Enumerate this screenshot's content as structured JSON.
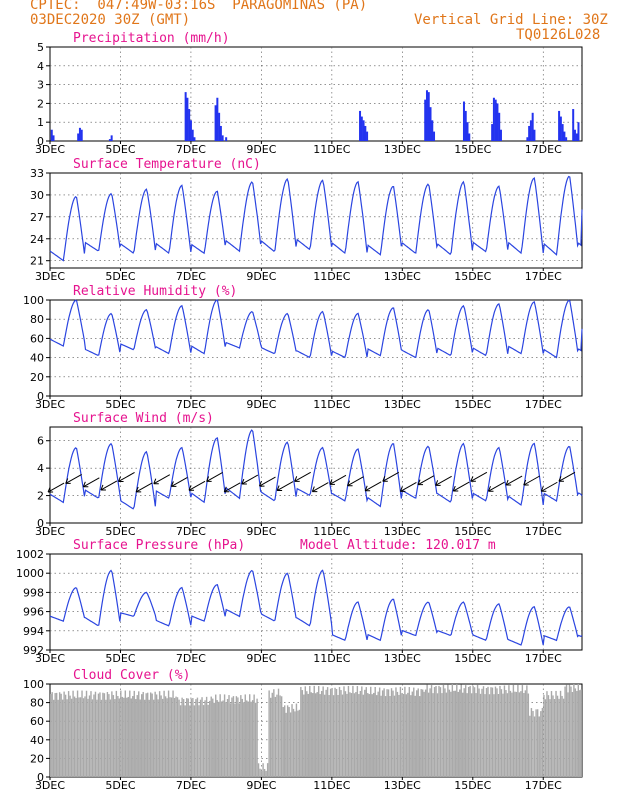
{
  "header": {
    "line1": "CPTEC:  047:49W-03:16S  PARAGOMINAS (PA)",
    "line2": "03DEC2020 30Z (GMT)",
    "right1": "Vertical Grid Line: 30Z",
    "right2": "TQ0126L028"
  },
  "colors": {
    "header": "#e0761a",
    "title": "#e6138f",
    "series": "#2b45e0",
    "precip": "#2333ef",
    "cloud": "#a9a9a9"
  },
  "x_tick_labels": [
    "3DEC",
    "5DEC",
    "7DEC",
    "9DEC",
    "11DEC",
    "13DEC",
    "15DEC",
    "17DEC"
  ],
  "x_range_days": [
    3,
    18.1
  ],
  "chart_data": [
    {
      "type": "bar",
      "title": "Precipitation (mm/h)",
      "ylim": [
        0,
        5
      ],
      "yticks": [
        0,
        1,
        2,
        3,
        4,
        5
      ],
      "x": [
        3.05,
        3.1,
        3.8,
        3.85,
        3.9,
        4.7,
        4.75,
        6.85,
        6.9,
        6.95,
        7.0,
        7.05,
        7.1,
        7.7,
        7.75,
        7.8,
        7.85,
        7.9,
        8.0,
        11.8,
        11.85,
        11.9,
        11.95,
        12.0,
        13.65,
        13.7,
        13.75,
        13.8,
        13.85,
        13.9,
        14.75,
        14.8,
        14.85,
        14.9,
        15.55,
        15.6,
        15.65,
        15.7,
        15.75,
        15.8,
        16.55,
        16.6,
        16.65,
        16.7,
        16.75,
        17.45,
        17.5,
        17.55,
        17.6,
        17.65,
        17.85,
        17.9,
        17.95,
        18.0
      ],
      "values": [
        0.6,
        0.3,
        0.4,
        0.7,
        0.6,
        0.1,
        0.3,
        2.6,
        2.3,
        1.7,
        1.1,
        0.6,
        0.2,
        1.9,
        2.3,
        1.5,
        0.8,
        0.3,
        0.2,
        1.6,
        1.3,
        1.1,
        0.8,
        0.5,
        2.2,
        2.7,
        2.6,
        1.8,
        1.1,
        0.5,
        2.1,
        1.6,
        1.0,
        0.4,
        0.9,
        2.3,
        2.2,
        2.0,
        1.5,
        0.6,
        0.2,
        0.8,
        1.1,
        1.5,
        0.6,
        1.6,
        1.3,
        0.9,
        0.5,
        0.2,
        1.7,
        0.6,
        0.4,
        1.0
      ]
    },
    {
      "type": "line",
      "title": "Surface Temperature (nC)",
      "ylim": [
        20,
        33
      ],
      "yticks": [
        21,
        24,
        27,
        30,
        33
      ],
      "min_values": [
        21.0,
        22.3,
        22.0,
        22.0,
        22.0,
        22.3,
        22.2,
        22.5,
        22.0,
        21.8,
        22.0,
        21.8,
        22.2,
        22.0,
        21.8
      ],
      "max_values": [
        29.8,
        30.2,
        30.8,
        31.3,
        30.5,
        31.8,
        32.2,
        32.0,
        31.8,
        31.2,
        31.5,
        31.8,
        31.2,
        32.3,
        32.6
      ],
      "end_value": 28.0
    },
    {
      "type": "line",
      "title": "Relative Humidity (%)",
      "ylim": [
        0,
        100
      ],
      "yticks": [
        0,
        20,
        40,
        60,
        80,
        100
      ],
      "min_values": [
        52,
        42,
        48,
        44,
        44,
        50,
        44,
        40,
        40,
        42,
        40,
        42,
        42,
        44,
        40
      ],
      "max_values": [
        100,
        86,
        90,
        94,
        100,
        88,
        86,
        88,
        86,
        92,
        90,
        94,
        96,
        98,
        100
      ],
      "end_value": 70
    },
    {
      "type": "line",
      "title": "Surface Wind (m/s)",
      "ylim": [
        0,
        7
      ],
      "yticks": [
        0,
        2,
        4,
        6
      ],
      "min_values": [
        1.5,
        1.8,
        1.0,
        1.8,
        1.5,
        1.8,
        1.6,
        2.0,
        1.6,
        1.2,
        1.8,
        1.5,
        1.6,
        1.3,
        1.6
      ],
      "max_values": [
        5.5,
        5.8,
        5.2,
        5.5,
        6.2,
        6.8,
        5.9,
        5.5,
        5.4,
        5.8,
        5.6,
        5.8,
        5.5,
        5.8,
        5.6
      ],
      "end_value": 2.0
    },
    {
      "type": "line",
      "title": "Surface Pressure (hPa)",
      "annotation": "Model Altitude: 120.017 m",
      "ylim": [
        992,
        1002
      ],
      "yticks": [
        992,
        994,
        996,
        998,
        1000,
        1002
      ],
      "min_values": [
        995.0,
        994.5,
        995.5,
        994.5,
        995.0,
        995.5,
        995.0,
        994.5,
        993.0,
        993.0,
        993.5,
        993.5,
        993.0,
        992.5,
        993.0
      ],
      "max_values": [
        998.5,
        1000.3,
        998.0,
        998.5,
        998.8,
        1000.3,
        1000.0,
        1000.3,
        997.0,
        997.3,
        997.0,
        997.0,
        996.8,
        996.5,
        996.5
      ],
      "end_value": 993.5
    },
    {
      "type": "bar",
      "title": "Cloud Cover (%)",
      "ylim": [
        0,
        100
      ],
      "yticks": [
        0,
        20,
        40,
        60,
        80,
        100
      ],
      "segments": [
        {
          "x": [
            3.0,
            6.6
          ],
          "level": 88
        },
        {
          "x": [
            6.6,
            7.6
          ],
          "level": 82
        },
        {
          "x": [
            7.6,
            8.9
          ],
          "level": 84
        },
        {
          "x": [
            8.9,
            9.2
          ],
          "level": 10
        },
        {
          "x": [
            9.2,
            9.6
          ],
          "level": 90
        },
        {
          "x": [
            9.6,
            10.1
          ],
          "level": 74
        },
        {
          "x": [
            10.1,
            12.0
          ],
          "level": 93
        },
        {
          "x": [
            12.0,
            13.6
          ],
          "level": 92
        },
        {
          "x": [
            13.6,
            15.2
          ],
          "level": 95
        },
        {
          "x": [
            15.2,
            16.6
          ],
          "level": 94
        },
        {
          "x": [
            16.6,
            17.0
          ],
          "level": 70
        },
        {
          "x": [
            17.0,
            17.6
          ],
          "level": 88
        },
        {
          "x": [
            17.6,
            18.1
          ],
          "level": 96
        }
      ]
    }
  ]
}
